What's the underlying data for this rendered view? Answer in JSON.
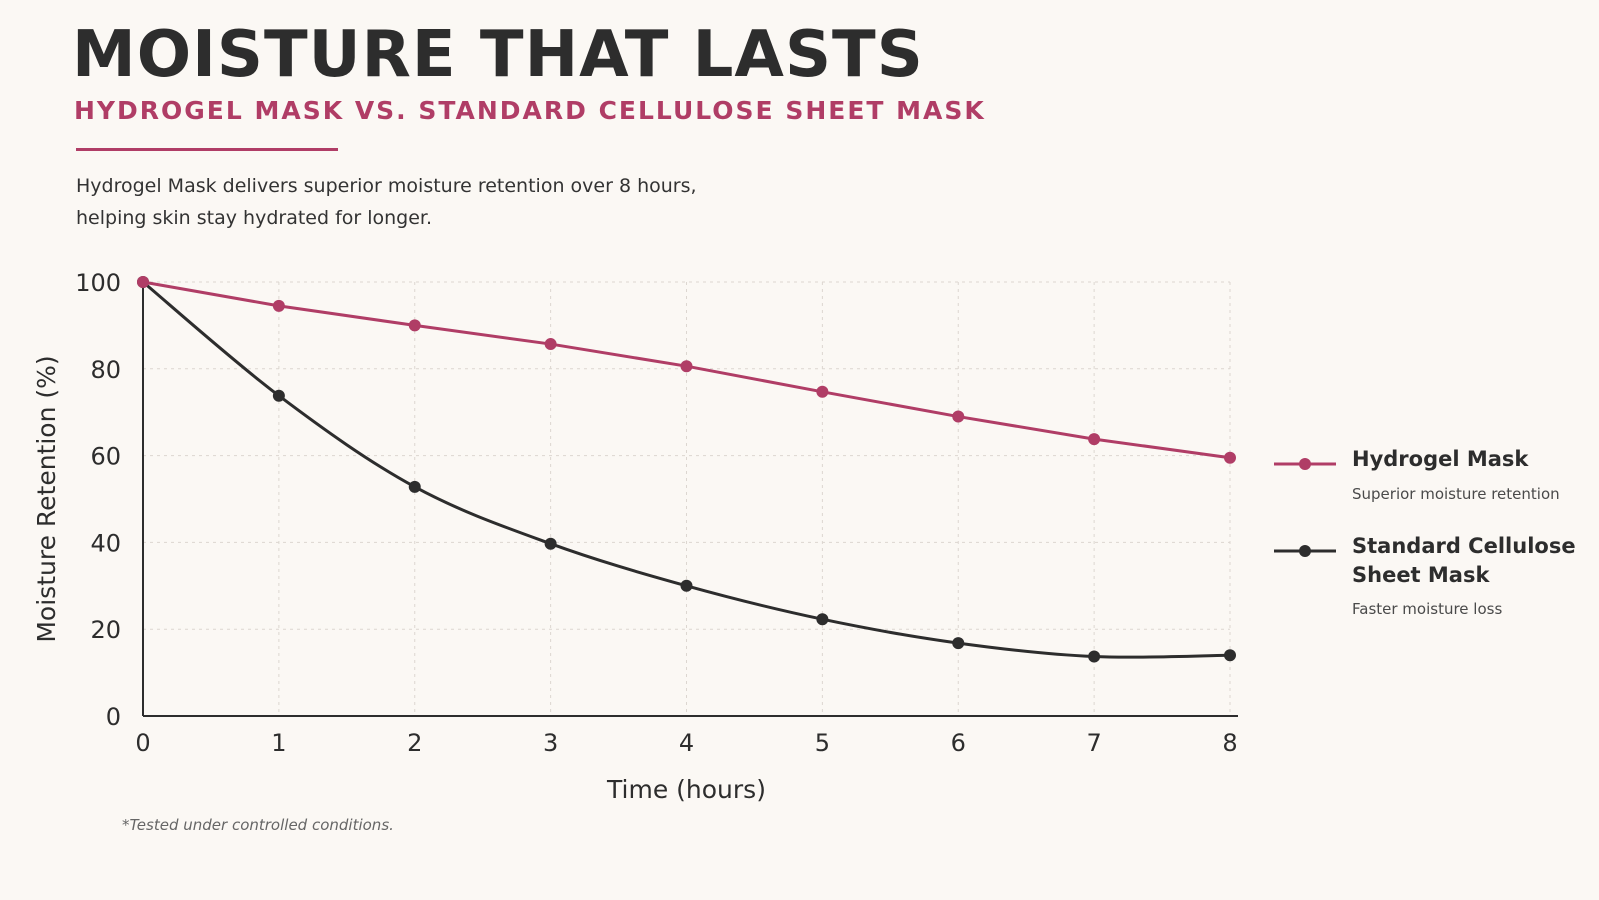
{
  "header": {
    "title": "MOISTURE THAT LASTS",
    "subtitle": "HYDROGEL MASK VS. STANDARD CELLULOSE SHEET MASK",
    "description_line1": "Hydrogel Mask delivers superior moisture retention over 8 hours,",
    "description_line2": "helping skin stay hydrated for longer."
  },
  "colors": {
    "accent": "#b03d66",
    "hydrogel": "#b03d66",
    "standard": "#2d2d2d",
    "background": "#fbf8f4"
  },
  "legend": {
    "hydrogel_note": "Superior moisture retention",
    "standard_note": "Faster moisture loss"
  },
  "footnote": "*Tested under controlled conditions.",
  "chart_data": {
    "type": "line",
    "title": "MOISTURE THAT LASTS",
    "subtitle": "HYDROGEL MASK VS. STANDARD CELLULOSE SHEET MASK",
    "xlabel": "Time (hours)",
    "ylabel": "Moisture Retention (%)",
    "x": [
      0,
      1,
      2,
      3,
      4,
      5,
      6,
      7,
      8
    ],
    "xlim": [
      0,
      8
    ],
    "ylim": [
      0,
      100
    ],
    "xticks": [
      "0",
      "1",
      "2",
      "3",
      "4",
      "5",
      "6",
      "7",
      "8"
    ],
    "yticks": [
      "0",
      "20",
      "40",
      "60",
      "80",
      "100"
    ],
    "grid": true,
    "legend_position": "right",
    "series": [
      {
        "name": "Hydrogel Mask",
        "values": [
          100,
          94.5,
          90,
          85.7,
          80.6,
          74.7,
          69,
          63.8,
          59.5
        ],
        "color": "#b03d66"
      },
      {
        "name": "Standard Cellulose Sheet Mask",
        "values": [
          100,
          73.8,
          52.8,
          39.7,
          30,
          22.3,
          16.8,
          13.7,
          14
        ],
        "color": "#2d2d2d"
      }
    ]
  }
}
